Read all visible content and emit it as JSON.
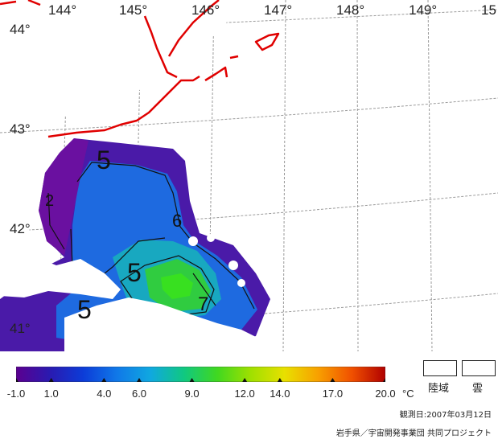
{
  "map": {
    "longitude_labels": [
      "144°",
      "145°",
      "146°",
      "147°",
      "148°",
      "149°",
      "15"
    ],
    "latitude_labels": [
      "44°",
      "43°",
      "42°",
      "41°"
    ],
    "contour_labels": [
      "5",
      "2",
      "6",
      "5",
      "5",
      "7"
    ],
    "colors": {
      "coastline": "#e00000",
      "grid": "#9a9a9a",
      "contour": "#111111",
      "cloud": "#ffffff",
      "land": "#ffffff"
    }
  },
  "colorbar": {
    "min": -1.0,
    "max": 20.0,
    "tick_labels": [
      "-1.0",
      "1.0",
      "4.0",
      "6.0",
      "9.0",
      "12.0",
      "14.0",
      "17.0",
      "20.0"
    ],
    "unit": "°C",
    "colors": [
      "#5b0090",
      "#2a1ab0",
      "#0c3cd8",
      "#1078e8",
      "#10a8e0",
      "#10c880",
      "#40d820",
      "#a0e000",
      "#e8e000",
      "#f8a000",
      "#f05000",
      "#b00000"
    ]
  },
  "legend": {
    "land_label": "陸域",
    "cloud_label": "雲"
  },
  "footer": {
    "observation_date": "観測日:2007年03月12日",
    "credit": "岩手県／宇宙開発事業団 共同プロジェクト"
  }
}
